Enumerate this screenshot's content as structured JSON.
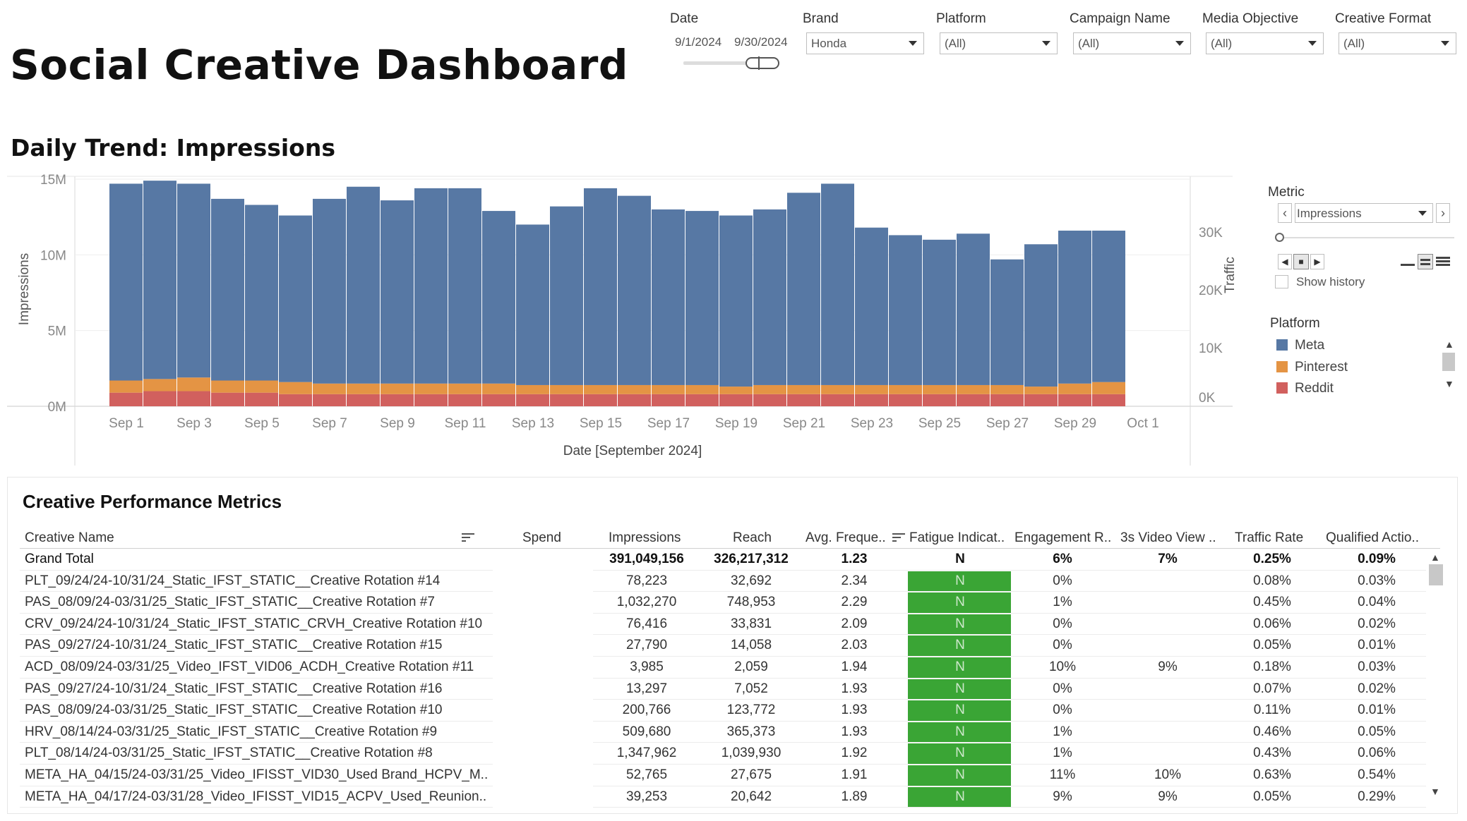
{
  "title": "Social Creative Dashboard",
  "filters": {
    "date": {
      "label": "Date",
      "start": "9/1/2024",
      "end": "9/30/2024"
    },
    "brand": {
      "label": "Brand",
      "value": "Honda"
    },
    "platform": {
      "label": "Platform",
      "value": "(All)"
    },
    "campaign": {
      "label": "Campaign Name",
      "value": "(All)"
    },
    "objective": {
      "label": "Media Objective",
      "value": "(All)"
    },
    "format": {
      "label": "Creative Format",
      "value": "(All)"
    }
  },
  "trend": {
    "title": "Daily Trend: Impressions",
    "secondary_axis_label": "Traffic",
    "secondary_ticks": [
      "30K",
      "20K",
      "10K",
      "0K"
    ]
  },
  "chart_data": {
    "type": "bar",
    "stacked": true,
    "xlabel": "Date [September 2024]",
    "ylabel": "Impressions",
    "ylim": [
      0,
      15000000
    ],
    "yticks": [
      "15M",
      "10M",
      "5M",
      "0M"
    ],
    "categories": [
      "Sep 1",
      "Sep 2",
      "Sep 3",
      "Sep 4",
      "Sep 5",
      "Sep 6",
      "Sep 7",
      "Sep 8",
      "Sep 9",
      "Sep 10",
      "Sep 11",
      "Sep 12",
      "Sep 13",
      "Sep 14",
      "Sep 15",
      "Sep 16",
      "Sep 17",
      "Sep 18",
      "Sep 19",
      "Sep 20",
      "Sep 21",
      "Sep 22",
      "Sep 23",
      "Sep 24",
      "Sep 25",
      "Sep 26",
      "Sep 27",
      "Sep 28",
      "Sep 29",
      "Sep 30"
    ],
    "xtick_labels": [
      "Sep 1",
      "Sep 3",
      "Sep 5",
      "Sep 7",
      "Sep 9",
      "Sep 11",
      "Sep 13",
      "Sep 15",
      "Sep 17",
      "Sep 19",
      "Sep 21",
      "Sep 23",
      "Sep 25",
      "Sep 27",
      "Sep 29",
      "Oct 1"
    ],
    "series": [
      {
        "name": "Reddit",
        "color": "#d1605e",
        "values": [
          900000,
          1000000,
          1000000,
          900000,
          900000,
          800000,
          800000,
          800000,
          800000,
          800000,
          800000,
          800000,
          800000,
          800000,
          800000,
          800000,
          800000,
          800000,
          800000,
          800000,
          800000,
          800000,
          800000,
          800000,
          800000,
          800000,
          800000,
          800000,
          800000,
          800000
        ]
      },
      {
        "name": "Pinterest",
        "color": "#e49444",
        "values": [
          800000,
          800000,
          900000,
          800000,
          800000,
          800000,
          700000,
          700000,
          700000,
          700000,
          700000,
          700000,
          600000,
          600000,
          600000,
          600000,
          600000,
          600000,
          500000,
          600000,
          600000,
          600000,
          600000,
          600000,
          600000,
          600000,
          600000,
          500000,
          700000,
          800000
        ]
      },
      {
        "name": "Meta",
        "color": "#5778a4",
        "values": [
          13000000,
          13100000,
          12800000,
          12000000,
          11600000,
          11000000,
          12200000,
          13000000,
          12100000,
          12900000,
          12900000,
          11400000,
          10600000,
          11800000,
          13000000,
          12500000,
          11600000,
          11500000,
          11300000,
          11600000,
          12700000,
          13300000,
          10400000,
          9900000,
          9600000,
          10000000,
          8300000,
          9400000,
          10100000,
          10000000
        ]
      }
    ]
  },
  "metric_panel": {
    "label": "Metric",
    "value": "Impressions",
    "show_history": "Show history"
  },
  "legend": {
    "label": "Platform",
    "items": [
      {
        "name": "Meta",
        "color": "#5778a4"
      },
      {
        "name": "Pinterest",
        "color": "#e49444"
      },
      {
        "name": "Reddit",
        "color": "#d1605e"
      }
    ]
  },
  "table": {
    "title": "Creative Performance Metrics",
    "headers": [
      "Creative Name",
      "Spend",
      "Impressions",
      "Reach",
      "Avg. Freque..",
      "Fatigue Indicat..",
      "Engagement R..",
      "3s Video View ..",
      "Traffic Rate",
      "Qualified Actio.."
    ],
    "grand_total": {
      "name": "Grand Total",
      "impressions": "391,049,156",
      "reach": "326,217,312",
      "freq": "1.23",
      "fatigue": "N",
      "engagement": "6%",
      "video": "7%",
      "traffic": "0.25%",
      "qualified": "0.09%"
    },
    "rows": [
      {
        "name": "PLT_09/24/24-10/31/24_Static_IFST_STATIC__Creative Rotation #14",
        "impressions": "78,223",
        "reach": "32,692",
        "freq": "2.34",
        "fatigue": "N",
        "engagement": "0%",
        "video": "",
        "traffic": "0.08%",
        "qualified": "0.03%"
      },
      {
        "name": "PAS_08/09/24-03/31/25_Static_IFST_STATIC__Creative Rotation #7",
        "impressions": "1,032,270",
        "reach": "748,953",
        "freq": "2.29",
        "fatigue": "N",
        "engagement": "1%",
        "video": "",
        "traffic": "0.45%",
        "qualified": "0.04%"
      },
      {
        "name": "CRV_09/24/24-10/31/24_Static_IFST_STATIC_CRVH_Creative Rotation #10",
        "impressions": "76,416",
        "reach": "33,831",
        "freq": "2.09",
        "fatigue": "N",
        "engagement": "0%",
        "video": "",
        "traffic": "0.06%",
        "qualified": "0.02%"
      },
      {
        "name": "PAS_09/27/24-10/31/24_Static_IFST_STATIC__Creative Rotation #15",
        "impressions": "27,790",
        "reach": "14,058",
        "freq": "2.03",
        "fatigue": "N",
        "engagement": "0%",
        "video": "",
        "traffic": "0.05%",
        "qualified": "0.01%"
      },
      {
        "name": "ACD_08/09/24-03/31/25_Video_IFST_VID06_ACDH_Creative Rotation #11",
        "impressions": "3,985",
        "reach": "2,059",
        "freq": "1.94",
        "fatigue": "N",
        "engagement": "10%",
        "video": "9%",
        "traffic": "0.18%",
        "qualified": "0.03%"
      },
      {
        "name": "PAS_09/27/24-10/31/24_Static_IFST_STATIC__Creative Rotation #16",
        "impressions": "13,297",
        "reach": "7,052",
        "freq": "1.93",
        "fatigue": "N",
        "engagement": "0%",
        "video": "",
        "traffic": "0.07%",
        "qualified": "0.02%"
      },
      {
        "name": "PAS_08/09/24-03/31/25_Static_IFST_STATIC__Creative Rotation #10",
        "impressions": "200,766",
        "reach": "123,772",
        "freq": "1.93",
        "fatigue": "N",
        "engagement": "0%",
        "video": "",
        "traffic": "0.11%",
        "qualified": "0.01%"
      },
      {
        "name": "HRV_08/14/24-03/31/25_Static_IFST_STATIC__Creative Rotation #9",
        "impressions": "509,680",
        "reach": "365,373",
        "freq": "1.93",
        "fatigue": "N",
        "engagement": "1%",
        "video": "",
        "traffic": "0.46%",
        "qualified": "0.05%"
      },
      {
        "name": "PLT_08/14/24-03/31/25_Static_IFST_STATIC__Creative Rotation #8",
        "impressions": "1,347,962",
        "reach": "1,039,930",
        "freq": "1.92",
        "fatigue": "N",
        "engagement": "1%",
        "video": "",
        "traffic": "0.43%",
        "qualified": "0.06%"
      },
      {
        "name": "META_HA_04/15/24-03/31/25_Video_IFISST_VID30_Used Brand_HCPV_M..",
        "impressions": "52,765",
        "reach": "27,675",
        "freq": "1.91",
        "fatigue": "N",
        "engagement": "11%",
        "video": "10%",
        "traffic": "0.63%",
        "qualified": "0.54%"
      },
      {
        "name": "META_HA_04/17/24-03/31/28_Video_IFISST_VID15_ACPV_Used_Reunion..",
        "impressions": "39,253",
        "reach": "20,642",
        "freq": "1.89",
        "fatigue": "N",
        "engagement": "9%",
        "video": "9%",
        "traffic": "0.05%",
        "qualified": "0.29%"
      }
    ]
  }
}
